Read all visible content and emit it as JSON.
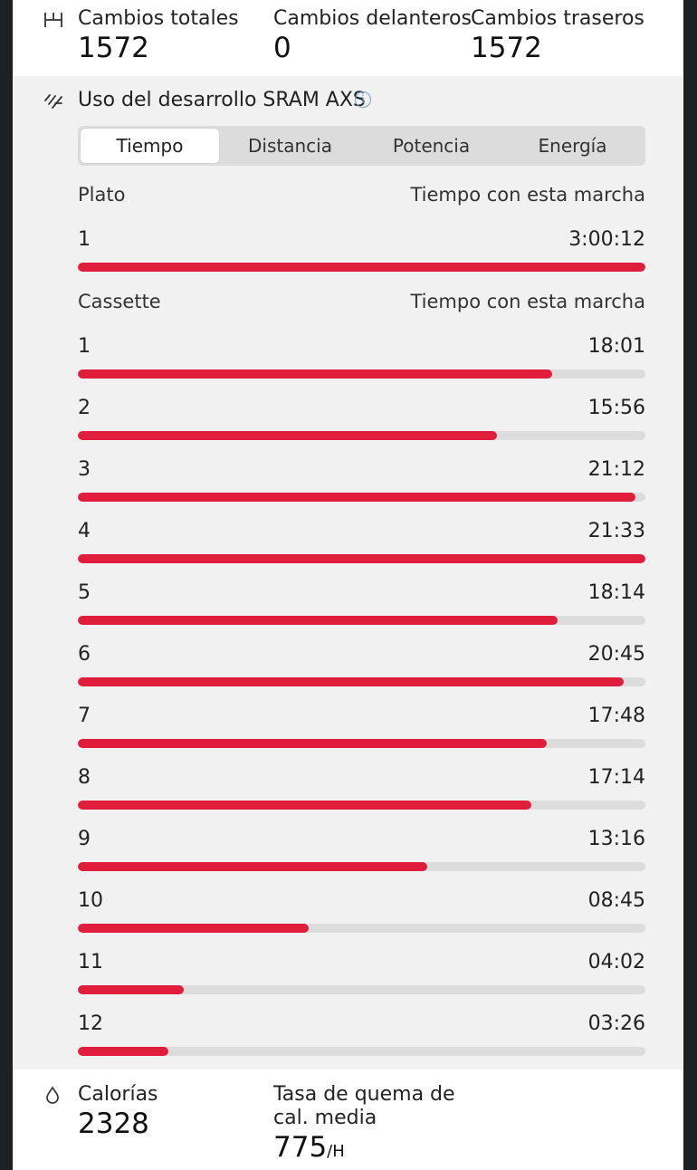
{
  "shifts": {
    "total_label": "Cambios totales",
    "total_value": "1572",
    "front_label": "Cambios delanteros",
    "front_value": "0",
    "rear_label": "Cambios traseros",
    "rear_value": "1572",
    "icon": "gear-shift-icon"
  },
  "sram": {
    "title": "Uso del desarrollo SRAM AXS",
    "info_glyph": "i",
    "icon": "drivetrain-icon",
    "tabs": [
      {
        "label": "Tiempo",
        "active": true
      },
      {
        "label": "Distancia",
        "active": false
      },
      {
        "label": "Potencia",
        "active": false
      },
      {
        "label": "Energía",
        "active": false
      }
    ],
    "chainring": {
      "header": "Plato",
      "time_header": "Tiempo con esta marcha",
      "rows": [
        {
          "gear": "1",
          "time": "3:00:12",
          "fraction": 1.0
        }
      ]
    },
    "cassette": {
      "header": "Cassette",
      "time_header": "Tiempo con esta marcha",
      "rows": [
        {
          "gear": "1",
          "time": "18:01",
          "fraction": 0.835
        },
        {
          "gear": "2",
          "time": "15:56",
          "fraction": 0.739
        },
        {
          "gear": "3",
          "time": "21:12",
          "fraction": 0.983
        },
        {
          "gear": "4",
          "time": "21:33",
          "fraction": 1.0
        },
        {
          "gear": "5",
          "time": "18:14",
          "fraction": 0.845
        },
        {
          "gear": "6",
          "time": "20:45",
          "fraction": 0.962
        },
        {
          "gear": "7",
          "time": "17:48",
          "fraction": 0.826
        },
        {
          "gear": "8",
          "time": "17:14",
          "fraction": 0.799
        },
        {
          "gear": "9",
          "time": "13:16",
          "fraction": 0.615
        },
        {
          "gear": "10",
          "time": "08:45",
          "fraction": 0.406
        },
        {
          "gear": "11",
          "time": "04:02",
          "fraction": 0.187
        },
        {
          "gear": "12",
          "time": "03:26",
          "fraction": 0.159
        }
      ]
    }
  },
  "calories": {
    "label": "Calorías",
    "value": "2328",
    "rate_label_1": "Tasa de quema de",
    "rate_label_2": "cal. media",
    "rate_value": "775",
    "rate_unit": "/H",
    "icon": "flame-icon"
  },
  "colors": {
    "bar": "#e01e3c",
    "track": "#dcdcdc"
  }
}
